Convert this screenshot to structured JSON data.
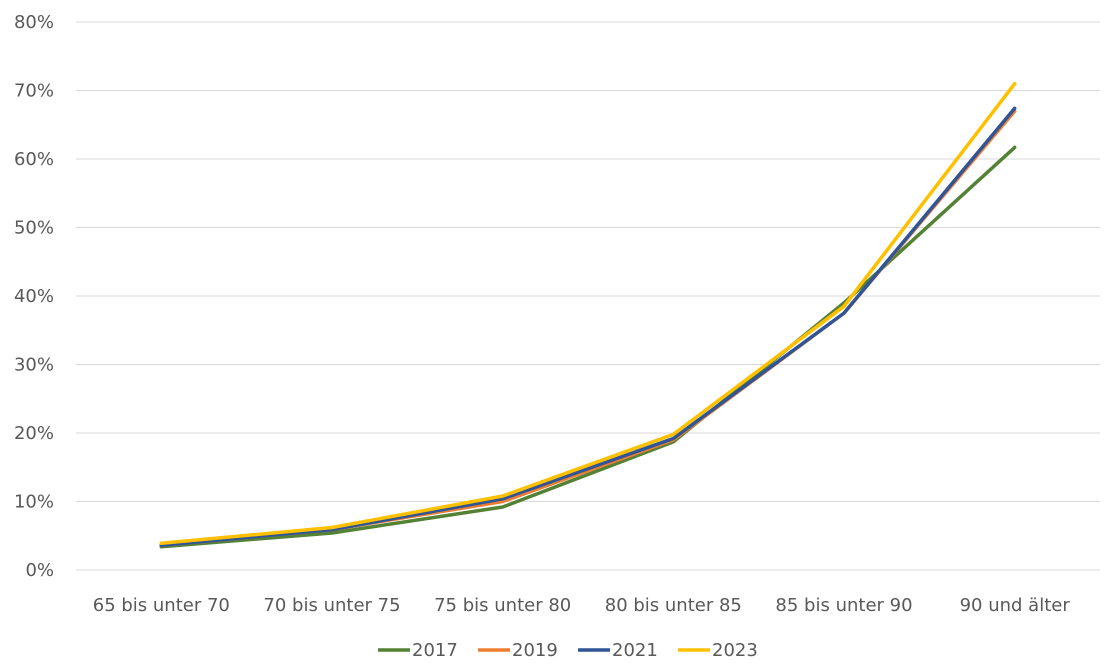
{
  "chart_data": {
    "type": "line",
    "title": "",
    "xlabel": "",
    "ylabel": "",
    "categories": [
      "65 bis unter 70",
      "70 bis unter 75",
      "75 bis unter 80",
      "80 bis unter 85",
      "85 bis unter 90",
      "90 und älter"
    ],
    "ylim": [
      0,
      0.8
    ],
    "y_ticks": [
      0,
      0.1,
      0.2,
      0.3,
      0.4,
      0.5,
      0.6,
      0.7,
      0.8
    ],
    "y_tick_labels": [
      "0%",
      "10%",
      "20%",
      "30%",
      "40%",
      "50%",
      "60%",
      "70%",
      "80%"
    ],
    "grid": true,
    "legend_position": "bottom",
    "series": [
      {
        "name": "2017",
        "color": "#548235",
        "values": [
          0.034,
          0.054,
          0.092,
          0.187,
          0.39,
          0.617
        ]
      },
      {
        "name": "2019",
        "color": "#ED7D31",
        "values": [
          0.036,
          0.059,
          0.1,
          0.19,
          0.375,
          0.67
        ]
      },
      {
        "name": "2021",
        "color": "#2F5597",
        "values": [
          0.036,
          0.059,
          0.104,
          0.192,
          0.375,
          0.674
        ]
      },
      {
        "name": "2023",
        "color": "#FFC000",
        "values": [
          0.039,
          0.062,
          0.108,
          0.198,
          0.385,
          0.71
        ]
      }
    ]
  }
}
